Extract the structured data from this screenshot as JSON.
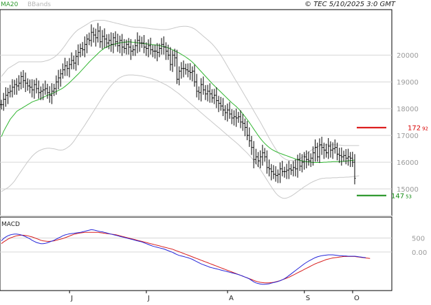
{
  "header": {
    "legend_ma": "MA20",
    "legend_bbands": "BBands",
    "copyright": "© TEC 5/10/2025 3:0 GMT"
  },
  "colors": {
    "price": "#000000",
    "ma20": "#2fb52f",
    "bbands": "#c8c8c8",
    "resistance": "#d80000",
    "support": "#108a10",
    "macd_line": "#2323d8",
    "signal_line": "#d81e1e",
    "grid": "#d6d6d6"
  },
  "chart_data": [
    {
      "type": "line",
      "panel": "price",
      "title": "",
      "y_ticks": [
        "20000",
        "19000",
        "18000",
        "17000",
        "16000",
        "15000"
      ],
      "x_tick_labels": [
        "J",
        "J",
        "A",
        "S",
        "O"
      ],
      "ylim": [
        14000,
        21700
      ],
      "levels": [
        {
          "name": "resistance",
          "value": 17292,
          "label": "172",
          "label_small": "92"
        },
        {
          "name": "support",
          "value": 14753,
          "label": "147",
          "label_small": "53"
        }
      ],
      "close": [
        18150,
        18350,
        18500,
        18600,
        18650,
        18800,
        18900,
        18850,
        18950,
        19200,
        19050,
        18950,
        18850,
        18800,
        18700,
        18900,
        18750,
        18600,
        18650,
        18700,
        18750,
        18600,
        18500,
        18650,
        18750,
        19000,
        19150,
        19300,
        19450,
        19600,
        19500,
        19650,
        19800,
        19700,
        19950,
        20100,
        20250,
        20200,
        20400,
        20600,
        20550,
        20850,
        20750,
        20650,
        20900,
        20500,
        20700,
        20600,
        20450,
        20550,
        20400,
        20650,
        20500,
        20350,
        20550,
        20300,
        20250,
        20400,
        20300,
        20150,
        20200,
        20350,
        20550,
        20450,
        20450,
        20300,
        20250,
        20350,
        20200,
        20150,
        20150,
        20100,
        20250,
        20400,
        20300,
        20150,
        20000,
        19650,
        20000,
        19900,
        19100,
        19400,
        19500,
        19500,
        19450,
        19400,
        19350,
        19400,
        19000,
        18650,
        18600,
        18900,
        18700,
        18550,
        18650,
        18550,
        18400,
        18500,
        18300,
        18200,
        18100,
        17950,
        17850,
        17950,
        17800,
        17650,
        17700,
        17650,
        17700,
        17500,
        17450,
        17300,
        17000,
        16800,
        16550,
        16100,
        16200,
        16050,
        16200,
        16350,
        16200,
        15800,
        15750,
        15650,
        15550,
        15500,
        15550,
        15750,
        15650,
        15650,
        15700,
        15750,
        15700,
        15800,
        15750,
        16100,
        15850,
        16000,
        16200,
        16100,
        16050,
        16150,
        16350,
        16550,
        16200,
        16650,
        16550,
        16450,
        16350,
        16600,
        16450,
        16500,
        16550,
        16300,
        16250,
        16200,
        16250,
        16150,
        16200,
        16150,
        16000,
        15400
      ],
      "ma20": [
        16950,
        17150,
        17300,
        17450,
        17600,
        17700,
        17800,
        17900,
        17950,
        18000,
        18050,
        18100,
        18150,
        18200,
        18250,
        18280,
        18310,
        18340,
        18380,
        18420,
        18460,
        18500,
        18530,
        18560,
        18600,
        18640,
        18680,
        18720,
        18770,
        18830,
        18900,
        18970,
        19050,
        19130,
        19210,
        19290,
        19380,
        19470,
        19560,
        19650,
        19740,
        19820,
        19900,
        19980,
        20060,
        20140,
        20200,
        20260,
        20300,
        20340,
        20380,
        20400,
        20420,
        20440,
        20460,
        20470,
        20480,
        20490,
        20500,
        20490,
        20480,
        20470,
        20460,
        20450,
        20440,
        20430,
        20420,
        20410,
        20400,
        20390,
        20380,
        20370,
        20360,
        20340,
        20320,
        20300,
        20270,
        20240,
        20200,
        20160,
        20120,
        20080,
        20030,
        19980,
        19930,
        19870,
        19810,
        19740,
        19660,
        19570,
        19480,
        19390,
        19300,
        19210,
        19120,
        19030,
        18940,
        18860,
        18780,
        18700,
        18620,
        18540,
        18460,
        18380,
        18300,
        18220,
        18150,
        18080,
        18000,
        17910,
        17810,
        17700,
        17590,
        17480,
        17360,
        17240,
        17120,
        17000,
        16890,
        16790,
        16700,
        16620,
        16550,
        16490,
        16440,
        16400,
        16360,
        16330,
        16300,
        16270,
        16240,
        16210,
        16180,
        16150,
        16120,
        16090,
        16070,
        16050,
        16030,
        16020,
        16010,
        16000,
        15990,
        15990,
        15990,
        15990,
        15990,
        16000,
        16000,
        16010,
        16010,
        16020,
        16020,
        16020,
        16020,
        16030,
        16030,
        16040,
        16050,
        16060,
        16070,
        16080
      ],
      "bb_upper": [
        19200,
        19300,
        19400,
        19500,
        19550,
        19600,
        19650,
        19700,
        19750,
        19750,
        19750,
        19750,
        19750,
        19750,
        19750,
        19750,
        19750,
        19750,
        19750,
        19760,
        19780,
        19800,
        19830,
        19870,
        19920,
        19980,
        20060,
        20150,
        20250,
        20360,
        20480,
        20600,
        20700,
        20800,
        20880,
        20950,
        21000,
        21050,
        21100,
        21150,
        21200,
        21250,
        21280,
        21300,
        21300,
        21300,
        21300,
        21300,
        21280,
        21260,
        21240,
        21220,
        21200,
        21180,
        21160,
        21140,
        21120,
        21100,
        21080,
        21060,
        21050,
        21040,
        21040,
        21040,
        21030,
        21020,
        21010,
        21000,
        20990,
        20980,
        20970,
        20960,
        20950,
        20950,
        20950,
        20950,
        20960,
        20980,
        21000,
        21020,
        21040,
        21060,
        21070,
        21080,
        21080,
        21070,
        21050,
        21020,
        20980,
        20920,
        20850,
        20780,
        20710,
        20640,
        20570,
        20500,
        20420,
        20330,
        20230,
        20120,
        20000,
        19870,
        19730,
        19590,
        19450,
        19310,
        19170,
        19030,
        18900,
        18760,
        18620,
        18480,
        18340,
        18200,
        18060,
        17920,
        17780,
        17640,
        17500,
        17350,
        17200,
        17050,
        16900,
        16760,
        16620,
        16490,
        16370,
        16270,
        16190,
        16130,
        16090,
        16070,
        16060,
        16060,
        16070,
        16090,
        16130,
        16180,
        16240,
        16300,
        16370,
        16430,
        16490,
        16540,
        16580,
        16610,
        16630,
        16640,
        16650,
        16650,
        16650,
        16650,
        16650,
        16640,
        16640,
        16630,
        16620,
        16620,
        16620,
        16620,
        16620,
        16620,
        16620,
        16620
      ],
      "bb_lower": [
        14900,
        14950,
        15000,
        15050,
        15120,
        15200,
        15300,
        15420,
        15540,
        15660,
        15780,
        15900,
        16020,
        16120,
        16220,
        16300,
        16370,
        16420,
        16460,
        16490,
        16510,
        16520,
        16520,
        16510,
        16500,
        16480,
        16460,
        16450,
        16460,
        16490,
        16540,
        16600,
        16680,
        16780,
        16900,
        17020,
        17140,
        17260,
        17380,
        17510,
        17640,
        17770,
        17900,
        18030,
        18160,
        18290,
        18420,
        18540,
        18650,
        18760,
        18860,
        18950,
        19030,
        19100,
        19160,
        19200,
        19230,
        19250,
        19260,
        19260,
        19260,
        19250,
        19240,
        19230,
        19220,
        19200,
        19180,
        19160,
        19140,
        19110,
        19080,
        19050,
        19010,
        18970,
        18930,
        18890,
        18840,
        18790,
        18730,
        18670,
        18610,
        18550,
        18480,
        18410,
        18340,
        18270,
        18200,
        18130,
        18060,
        17990,
        17920,
        17850,
        17780,
        17710,
        17640,
        17570,
        17500,
        17430,
        17360,
        17290,
        17220,
        17150,
        17080,
        17010,
        16940,
        16870,
        16800,
        16730,
        16660,
        16580,
        16500,
        16420,
        16340,
        16250,
        16160,
        16060,
        15960,
        15850,
        15730,
        15600,
        15470,
        15340,
        15210,
        15080,
        14960,
        14850,
        14760,
        14700,
        14660,
        14650,
        14660,
        14690,
        14730,
        14780,
        14840,
        14900,
        14960,
        15020,
        15080,
        15130,
        15180,
        15230,
        15270,
        15310,
        15340,
        15370,
        15390,
        15400,
        15410,
        15410,
        15410,
        15420,
        15420,
        15420,
        15430,
        15430,
        15430,
        15440,
        15440,
        15450,
        15460,
        15470,
        15480,
        15490
      ]
    },
    {
      "type": "line",
      "panel": "macd",
      "title": "MACD",
      "y_ticks": [
        "500",
        "0.00"
      ],
      "ylim": [
        -1300,
        1100
      ],
      "macd": [
        400,
        480,
        540,
        580,
        610,
        630,
        640,
        640,
        630,
        610,
        580,
        550,
        510,
        470,
        420,
        380,
        340,
        320,
        300,
        300,
        310,
        330,
        360,
        390,
        420,
        460,
        500,
        540,
        580,
        610,
        630,
        650,
        660,
        670,
        680,
        690,
        700,
        720,
        740,
        760,
        780,
        800,
        790,
        770,
        750,
        730,
        720,
        700,
        680,
        660,
        640,
        620,
        600,
        580,
        560,
        540,
        520,
        500,
        480,
        460,
        440,
        420,
        400,
        380,
        360,
        330,
        300,
        270,
        240,
        210,
        190,
        170,
        150,
        130,
        110,
        80,
        50,
        20,
        -10,
        -50,
        -90,
        -120,
        -140,
        -160,
        -180,
        -200,
        -230,
        -260,
        -300,
        -340,
        -380,
        -420,
        -450,
        -480,
        -510,
        -540,
        -560,
        -580,
        -600,
        -620,
        -640,
        -660,
        -680,
        -700,
        -720,
        -740,
        -760,
        -780,
        -800,
        -830,
        -860,
        -890,
        -920,
        -960,
        -1010,
        -1060,
        -1100,
        -1120,
        -1140,
        -1150,
        -1150,
        -1140,
        -1130,
        -1110,
        -1090,
        -1070,
        -1050,
        -1020,
        -990,
        -950,
        -900,
        -840,
        -780,
        -720,
        -660,
        -600,
        -540,
        -480,
        -420,
        -370,
        -320,
        -280,
        -240,
        -200,
        -170,
        -150,
        -130,
        -120,
        -110,
        -100,
        -100,
        -100,
        -110,
        -120,
        -130,
        -130,
        -140,
        -140,
        -150,
        -150,
        -150,
        -150,
        -160,
        -170,
        -180,
        -190,
        -200
      ],
      "signal": [
        300,
        360,
        410,
        460,
        500,
        530,
        560,
        580,
        590,
        600,
        600,
        590,
        580,
        560,
        540,
        510,
        480,
        450,
        420,
        400,
        390,
        380,
        380,
        390,
        400,
        420,
        440,
        460,
        480,
        510,
        540,
        570,
        600,
        630,
        650,
        670,
        680,
        690,
        700,
        700,
        700,
        700,
        700,
        700,
        700,
        690,
        680,
        670,
        660,
        650,
        640,
        630,
        620,
        600,
        580,
        560,
        540,
        520,
        500,
        480,
        460,
        440,
        420,
        400,
        380,
        360,
        340,
        320,
        300,
        280,
        260,
        240,
        220,
        200,
        180,
        160,
        140,
        120,
        100,
        70,
        40,
        10,
        -20,
        -50,
        -80,
        -110,
        -140,
        -170,
        -200,
        -230,
        -260,
        -290,
        -320,
        -350,
        -380,
        -410,
        -440,
        -470,
        -500,
        -530,
        -560,
        -590,
        -620,
        -650,
        -680,
        -710,
        -740,
        -770,
        -800,
        -830,
        -860,
        -890,
        -920,
        -950,
        -980,
        -1010,
        -1040,
        -1060,
        -1080,
        -1090,
        -1100,
        -1100,
        -1100,
        -1090,
        -1080,
        -1060,
        -1040,
        -1020,
        -990,
        -960,
        -930,
        -900,
        -860,
        -820,
        -780,
        -740,
        -700,
        -660,
        -620,
        -580,
        -540,
        -500,
        -460,
        -420,
        -390,
        -360,
        -330,
        -300,
        -270,
        -250,
        -230,
        -210,
        -200,
        -190,
        -180,
        -170,
        -160,
        -160,
        -160,
        -160,
        -160,
        -160,
        -170,
        -180,
        -190,
        -200,
        -210,
        -220,
        -230
      ]
    }
  ]
}
